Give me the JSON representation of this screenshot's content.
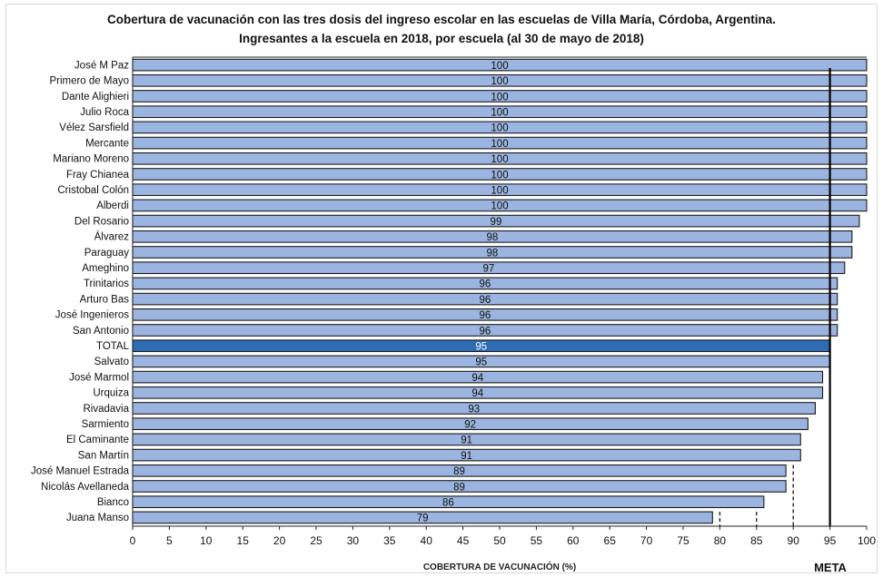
{
  "chart_data": {
    "type": "bar",
    "orientation": "horizontal",
    "title": "Cobertura de vacunación con las tres dosis del ingreso escolar en las escuelas de Villa María, Córdoba, Argentina.",
    "subtitle": "Ingresantes a la escuela en 2018, por escuela (al 30 de mayo de 2018)",
    "xlabel": "COBERTURA DE VACUNACIÓN (%)",
    "ylabel": "",
    "xlim": [
      0,
      100
    ],
    "xticks": [
      0,
      5,
      10,
      15,
      20,
      25,
      30,
      35,
      40,
      45,
      50,
      55,
      60,
      65,
      70,
      75,
      80,
      85,
      90,
      95,
      100
    ],
    "categories": [
      "José M Paz",
      "Primero de Mayo",
      "Dante Alighieri",
      "Julio Roca",
      "Vélez Sarsfield",
      "Mercante",
      "Mariano Moreno",
      "Fray Chianea",
      "Cristobal Colón",
      "Alberdi",
      "Del Rosario",
      "Álvarez",
      "Paraguay",
      "Ameghino",
      "Trinitarios",
      "Arturo Bas",
      "José Ingenieros",
      "San Antonio",
      "TOTAL",
      "Salvato",
      "José Marmol",
      "Urquiza",
      "Rivadavia",
      "Sarmiento",
      "El Caminante",
      "San Martín",
      "José Manuel Estrada",
      "Nicolás Avellaneda",
      "Bianco",
      "Juana Manso"
    ],
    "values": [
      100,
      100,
      100,
      100,
      100,
      100,
      100,
      100,
      100,
      100,
      99,
      98,
      98,
      97,
      96,
      96,
      96,
      96,
      95,
      95,
      94,
      94,
      93,
      92,
      91,
      91,
      89,
      89,
      86,
      79
    ],
    "data_labels": [
      "100",
      "100",
      "100",
      "100",
      "100",
      "100",
      "100",
      "100",
      "100",
      "100",
      "99",
      "98",
      "98",
      "97",
      "96",
      "96",
      "96",
      "96",
      "95",
      "95",
      "94",
      "94",
      "93",
      "92",
      "91",
      "91",
      "89",
      "89",
      "86",
      "79"
    ],
    "highlight_category": "TOTAL",
    "reference_line": {
      "value": 95,
      "label": "META"
    },
    "dashed_reference_lines": [
      80,
      85,
      90
    ],
    "colors": {
      "bar": "#9bb5e0",
      "highlight": "#2e6db4",
      "bar_edge": "#1a1a1a",
      "reference": "#000000"
    },
    "grid": false,
    "legend": "none"
  }
}
